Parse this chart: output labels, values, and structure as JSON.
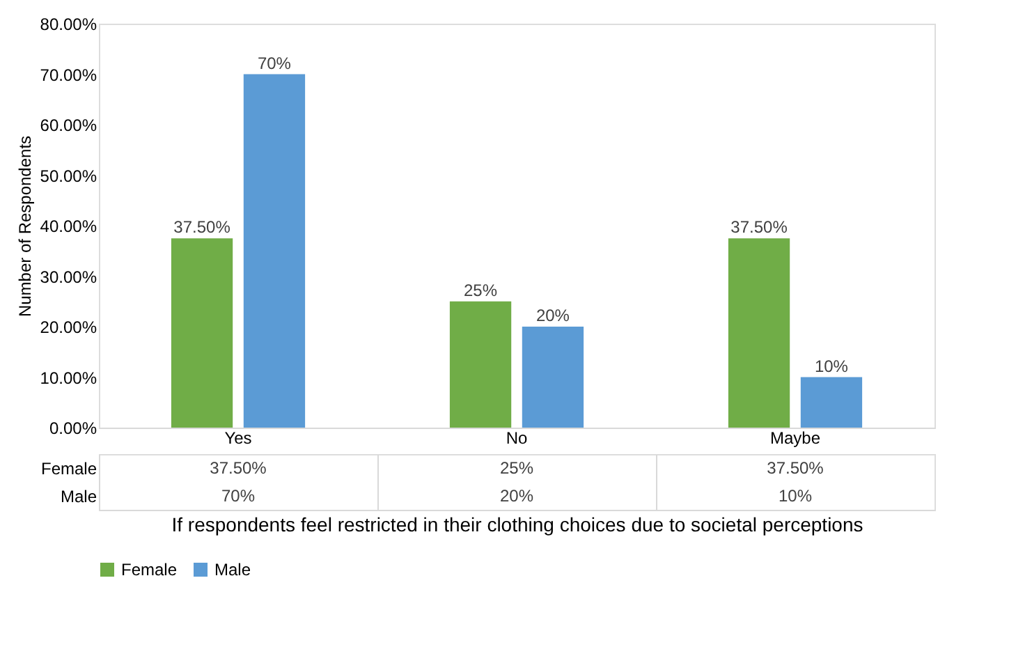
{
  "chart_data": {
    "type": "bar",
    "xlabel": "If respondents feel restricted in their clothing choices due to societal perceptions",
    "ylabel": "Number of Respondents",
    "categories": [
      "Yes",
      "No",
      "Maybe"
    ],
    "series": [
      {
        "name": "Female",
        "color": "#70ad47",
        "values": [
          37.5,
          25,
          37.5
        ],
        "value_labels": [
          "37.50%",
          "25%",
          "37.50%"
        ]
      },
      {
        "name": "Male",
        "color": "#5b9bd5",
        "values": [
          70,
          20,
          10
        ],
        "value_labels": [
          "70%",
          "20%",
          "10%"
        ]
      }
    ],
    "ylim": [
      0,
      80
    ],
    "yticks": [
      {
        "value": 0,
        "label": "0.00%"
      },
      {
        "value": 10,
        "label": "10.00%"
      },
      {
        "value": 20,
        "label": "20.00%"
      },
      {
        "value": 30,
        "label": "30.00%"
      },
      {
        "value": 40,
        "label": "40.00%"
      },
      {
        "value": 50,
        "label": "50.00%"
      },
      {
        "value": 60,
        "label": "60.00%"
      },
      {
        "value": 70,
        "label": "70.00%"
      },
      {
        "value": 80,
        "label": "80.00%"
      }
    ],
    "grid": false,
    "legend": "bottom"
  }
}
